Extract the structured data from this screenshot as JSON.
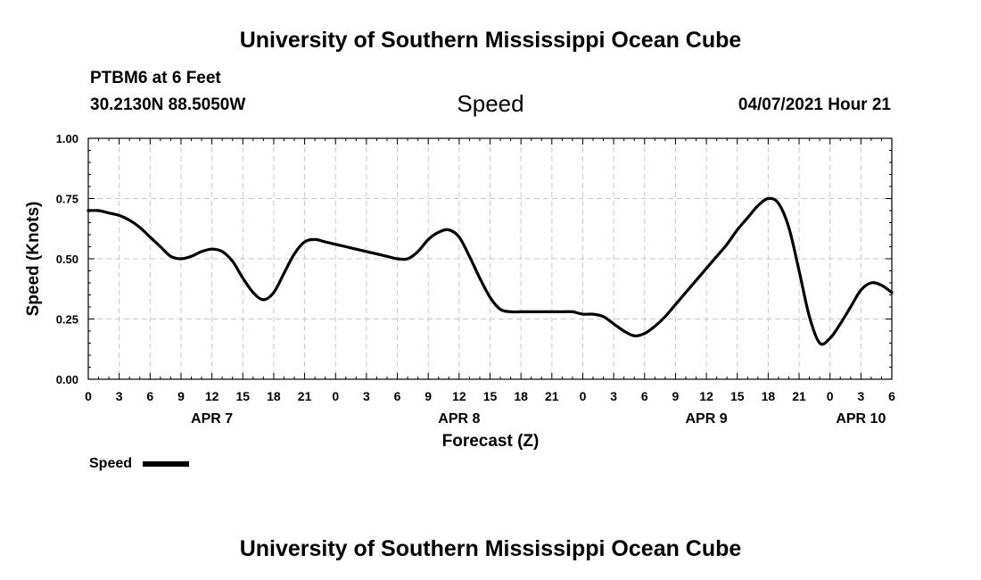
{
  "page": {
    "top_title": "University of Southern Mississippi Ocean Cube",
    "bottom_title": "University of Southern Mississippi Ocean Cube",
    "station": "PTBM6 at 6 Feet",
    "coords": "30.2130N  88.5050W",
    "datetime": "04/07/2021 Hour 21",
    "legend_label": "Speed"
  },
  "chart_data": {
    "type": "line",
    "title": "Speed",
    "xlabel": "Forecast (Z)",
    "ylabel": "Speed (Knots)",
    "ylim": [
      0,
      1.0
    ],
    "xlim": [
      0,
      78
    ],
    "x_unit": "hours from APR 7 00Z",
    "grid": true,
    "y_ticks": [
      0,
      0.25,
      0.5,
      0.75,
      1.0
    ],
    "y_tick_labels": [
      "0.00",
      "0.25",
      "0.50",
      "0.75",
      "1.00"
    ],
    "x_ticks": [
      0,
      3,
      6,
      9,
      12,
      15,
      18,
      21,
      24,
      27,
      30,
      33,
      36,
      39,
      42,
      45,
      48,
      51,
      54,
      57,
      60,
      63,
      66,
      69,
      72,
      75,
      78
    ],
    "x_tick_labels": [
      "0",
      "3",
      "6",
      "9",
      "12",
      "15",
      "18",
      "21",
      "0",
      "3",
      "6",
      "9",
      "12",
      "15",
      "18",
      "21",
      "0",
      "3",
      "6",
      "9",
      "12",
      "15",
      "18",
      "21",
      "0",
      "3",
      "6"
    ],
    "date_labels": [
      {
        "x": 12,
        "label": "APR 7"
      },
      {
        "x": 36,
        "label": "APR 8"
      },
      {
        "x": 60,
        "label": "APR 9"
      },
      {
        "x": 75,
        "label": "APR 10"
      }
    ],
    "series": [
      {
        "name": "Speed",
        "color": "#000000",
        "x": [
          0,
          1,
          2,
          3,
          4,
          5,
          6,
          7,
          8,
          9,
          10,
          11,
          12,
          13,
          14,
          15,
          16,
          17,
          18,
          19,
          20,
          21,
          22,
          23,
          24,
          25,
          26,
          27,
          28,
          29,
          30,
          31,
          32,
          33,
          34,
          35,
          36,
          37,
          38,
          39,
          40,
          41,
          42,
          43,
          44,
          45,
          46,
          47,
          48,
          49,
          50,
          51,
          52,
          53,
          54,
          55,
          56,
          57,
          58,
          59,
          60,
          61,
          62,
          63,
          64,
          65,
          66,
          67,
          68,
          69,
          70,
          71,
          72,
          73,
          74,
          75,
          76,
          77,
          78
        ],
        "values": [
          0.7,
          0.7,
          0.69,
          0.68,
          0.66,
          0.63,
          0.59,
          0.55,
          0.51,
          0.5,
          0.51,
          0.53,
          0.54,
          0.53,
          0.49,
          0.42,
          0.36,
          0.33,
          0.36,
          0.44,
          0.52,
          0.57,
          0.58,
          0.57,
          0.56,
          0.55,
          0.54,
          0.53,
          0.52,
          0.51,
          0.5,
          0.5,
          0.53,
          0.58,
          0.61,
          0.62,
          0.59,
          0.51,
          0.42,
          0.34,
          0.29,
          0.28,
          0.28,
          0.28,
          0.28,
          0.28,
          0.28,
          0.28,
          0.27,
          0.27,
          0.26,
          0.23,
          0.2,
          0.18,
          0.19,
          0.22,
          0.26,
          0.31,
          0.36,
          0.41,
          0.46,
          0.51,
          0.56,
          0.62,
          0.67,
          0.72,
          0.75,
          0.73,
          0.63,
          0.45,
          0.26,
          0.15,
          0.17,
          0.23,
          0.3,
          0.37,
          0.4,
          0.39,
          0.36
        ]
      }
    ]
  }
}
